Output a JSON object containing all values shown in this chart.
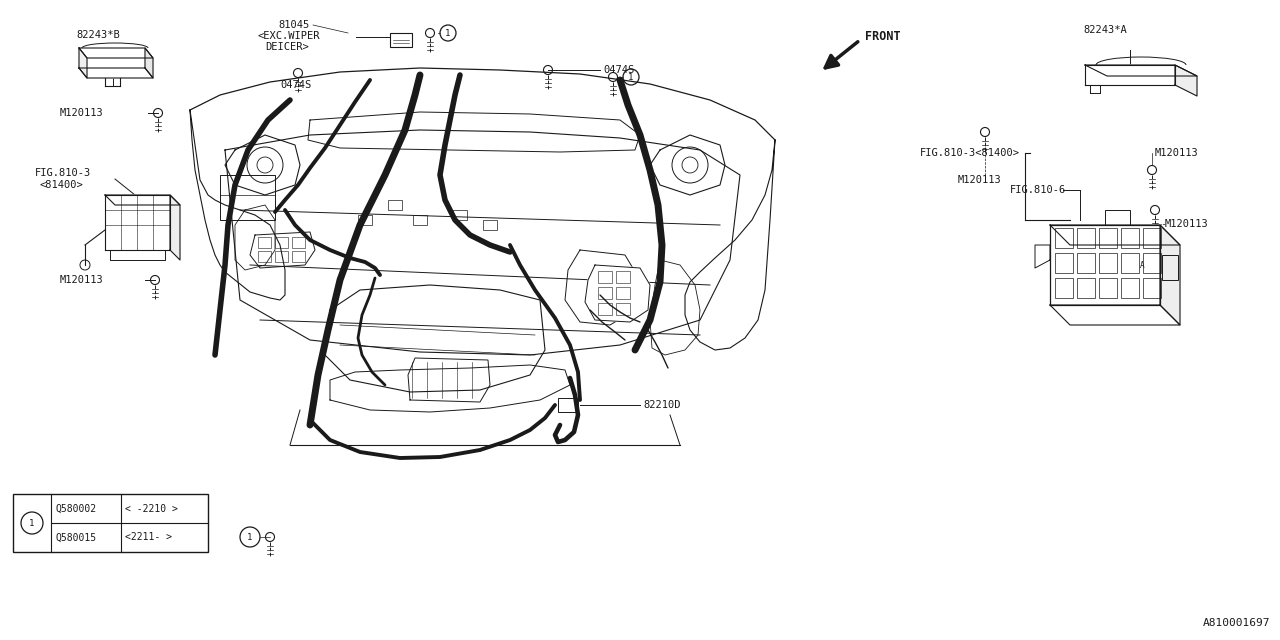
{
  "bg_color": "#ffffff",
  "line_color": "#1a1a1a",
  "part_number": "A810001697",
  "font_family": "monospace",
  "fs": 7.5,
  "labels": {
    "top_left_part": "82243*B",
    "m120113_1": "M120113",
    "m120113_2": "M120113",
    "fig810_3_left": "FIG.810-3",
    "fig810_3_left2": "<81400>",
    "label_81045": "81045",
    "label_exc": "<EXC.WIPER",
    "label_deicer": "DEICER>",
    "label_0474s_left": "0474S",
    "label_0474s_right": "0474S",
    "label_82210d": "82210D",
    "front": "FRONT",
    "top_right_part": "82243*A",
    "fig810_3_right": "FIG.810-3<81400>",
    "fig810_6": "FIG.810-6",
    "m120113_r1": "M120113",
    "m120113_r2": "M120113",
    "legend_row1_code": "Q580002",
    "legend_row1_range": "< -2210 >",
    "legend_row2_code": "Q580015",
    "legend_row2_range": "<2211- >"
  }
}
